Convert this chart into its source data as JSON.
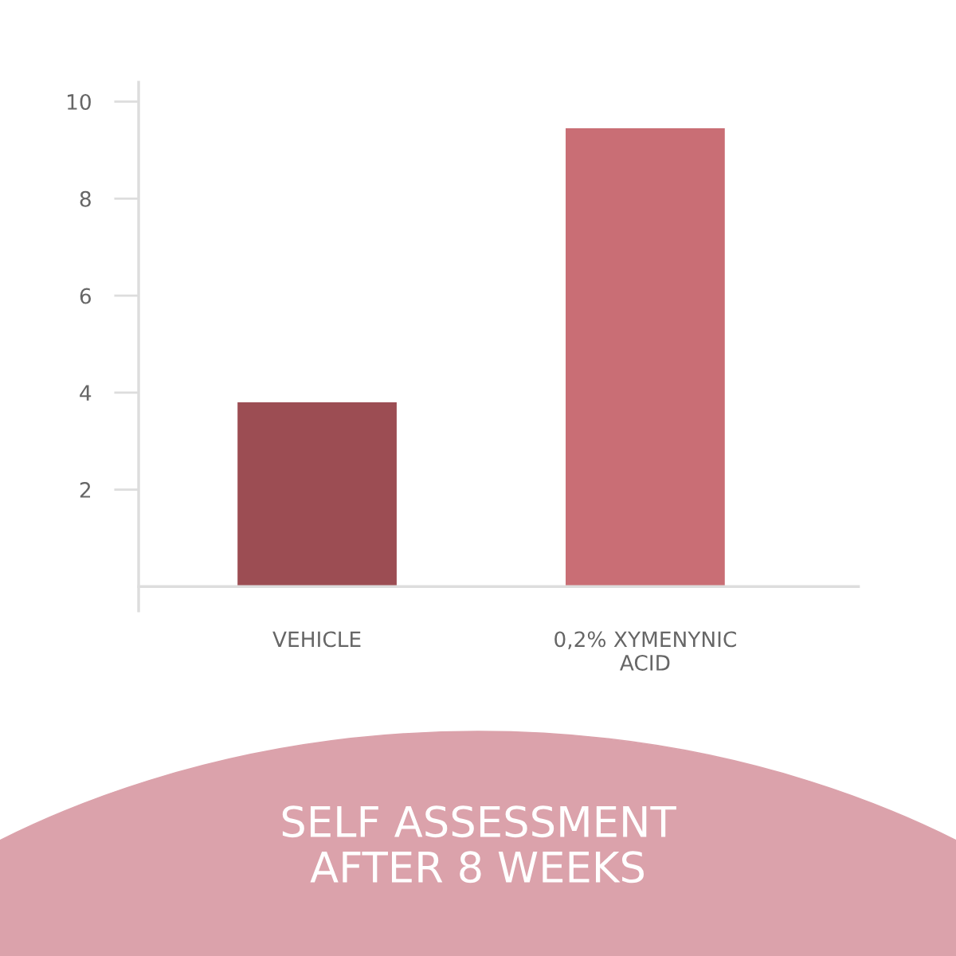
{
  "chart_data": {
    "type": "bar",
    "title": "SELF ASSESSMENT\nAFTER 8 WEEKS",
    "categories": [
      "VEHICLE",
      "0,2% XYMENYNIC\nACID"
    ],
    "values": [
      3.8,
      9.45
    ],
    "colors": [
      "#9c4d53",
      "#c96e75"
    ],
    "ylim": [
      -0.5,
      10.4
    ],
    "yticks": [
      2,
      4,
      6,
      8,
      10
    ],
    "grid": false,
    "legend": false
  }
}
